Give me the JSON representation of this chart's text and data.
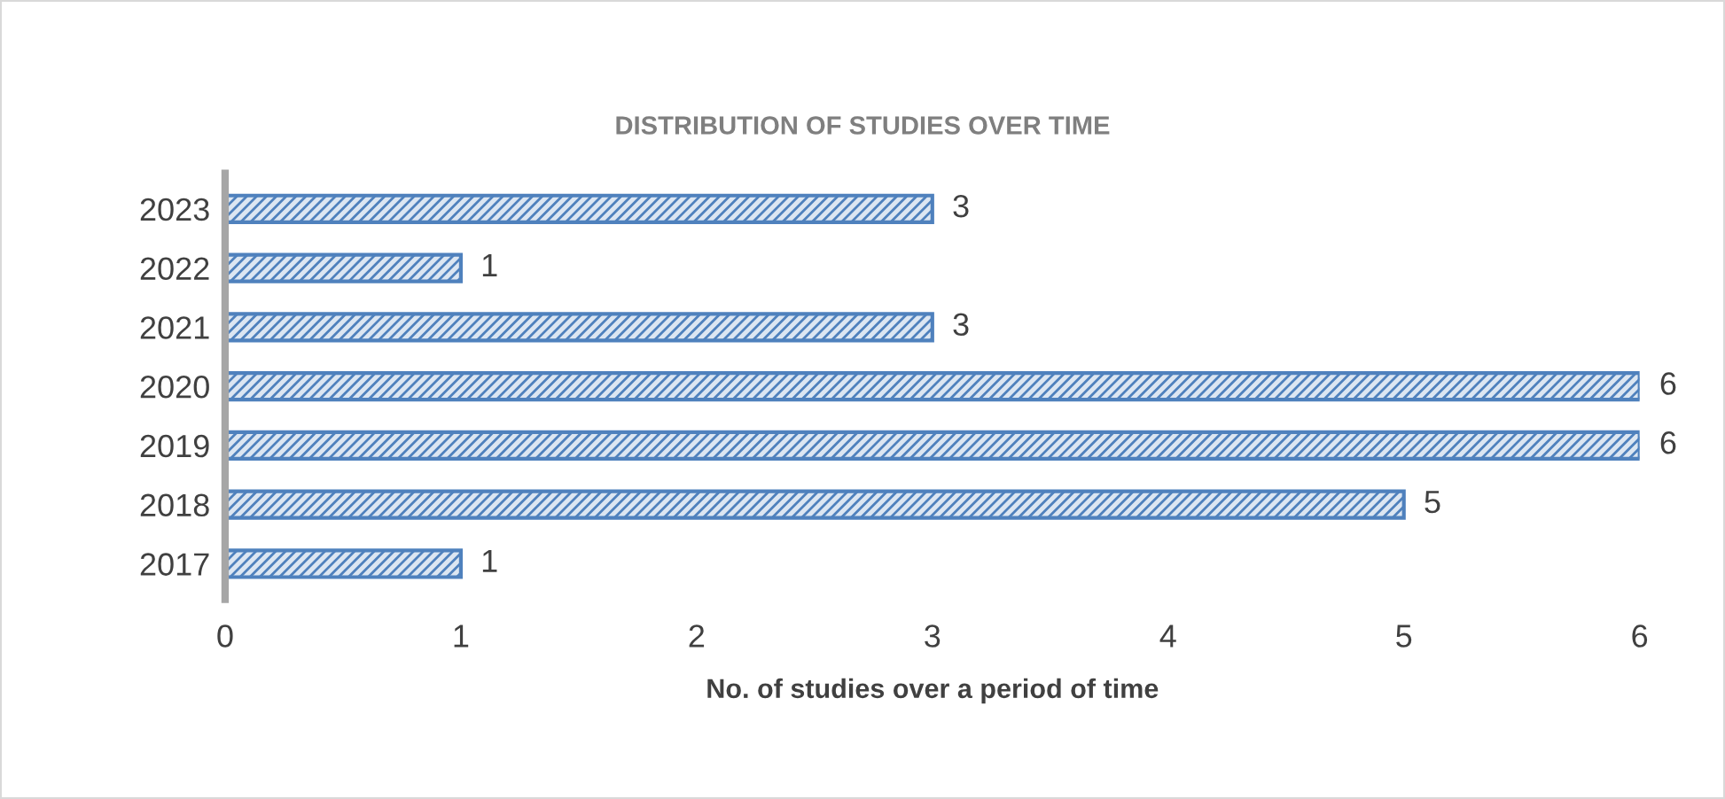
{
  "chart_data": {
    "type": "bar",
    "orientation": "horizontal",
    "title": "DISTRIBUTION OF STUDIES OVER TIME",
    "xlabel": "No. of studies over a period of time",
    "categories": [
      "2023",
      "2022",
      "2021",
      "2020",
      "2019",
      "2018",
      "2017"
    ],
    "values": [
      3,
      1,
      3,
      6,
      6,
      5,
      1
    ],
    "color": "#4f81bd",
    "data_labels": true,
    "xlim": [
      0,
      6
    ],
    "xticks": [
      0,
      1,
      2,
      3,
      4,
      5,
      6
    ],
    "grid": false,
    "legend": false
  }
}
